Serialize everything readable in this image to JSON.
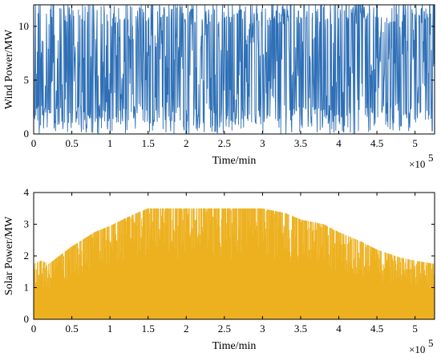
{
  "chart_data": [
    {
      "type": "line",
      "xlabel": "Time/min",
      "ylabel": "Wind Power/MW",
      "xlim": [
        0,
        525600
      ],
      "ylim": [
        0,
        12
      ],
      "xtick_labels": [
        "0",
        "0.5",
        "1",
        "1.5",
        "2",
        "2.5",
        "3",
        "3.5",
        "4",
        "4.5",
        "5"
      ],
      "xtick_values": [
        0,
        50000,
        100000,
        150000,
        200000,
        250000,
        300000,
        350000,
        400000,
        450000,
        500000
      ],
      "ytick_labels": [
        "0",
        "5",
        "10"
      ],
      "ytick_values": [
        0,
        5,
        10
      ],
      "x_multiplier_base": "×10",
      "x_multiplier_exp": "5",
      "color": "#2E6FB6",
      "grid": false,
      "series_summary": {
        "min": 0,
        "max": 12,
        "typical_range": [
          0,
          12
        ]
      }
    },
    {
      "type": "area",
      "xlabel": "Time/min",
      "ylabel": "Solar Power/MW",
      "xlim": [
        0,
        525600
      ],
      "ylim": [
        0,
        4
      ],
      "xtick_labels": [
        "0",
        "0.5",
        "1",
        "1.5",
        "2",
        "2.5",
        "3",
        "3.5",
        "4",
        "4.5",
        "5"
      ],
      "xtick_values": [
        0,
        50000,
        100000,
        150000,
        200000,
        250000,
        300000,
        350000,
        400000,
        450000,
        500000
      ],
      "ytick_labels": [
        "0",
        "1",
        "2",
        "3",
        "4"
      ],
      "ytick_values": [
        0,
        1,
        2,
        3,
        4
      ],
      "x_multiplier_base": "×10",
      "x_multiplier_exp": "5",
      "color": "#EDB120",
      "grid": false,
      "envelope": {
        "x": [
          0,
          10000,
          20000,
          50000,
          80000,
          100000,
          130000,
          150000,
          200000,
          250000,
          300000,
          330000,
          350000,
          380000,
          400000,
          430000,
          450000,
          480000,
          500000,
          525600
        ],
        "y": [
          1.75,
          1.85,
          1.75,
          2.3,
          2.75,
          2.95,
          3.3,
          3.5,
          3.5,
          3.5,
          3.5,
          3.35,
          3.15,
          3.0,
          2.75,
          2.45,
          2.2,
          1.95,
          1.85,
          1.75
        ]
      }
    }
  ]
}
